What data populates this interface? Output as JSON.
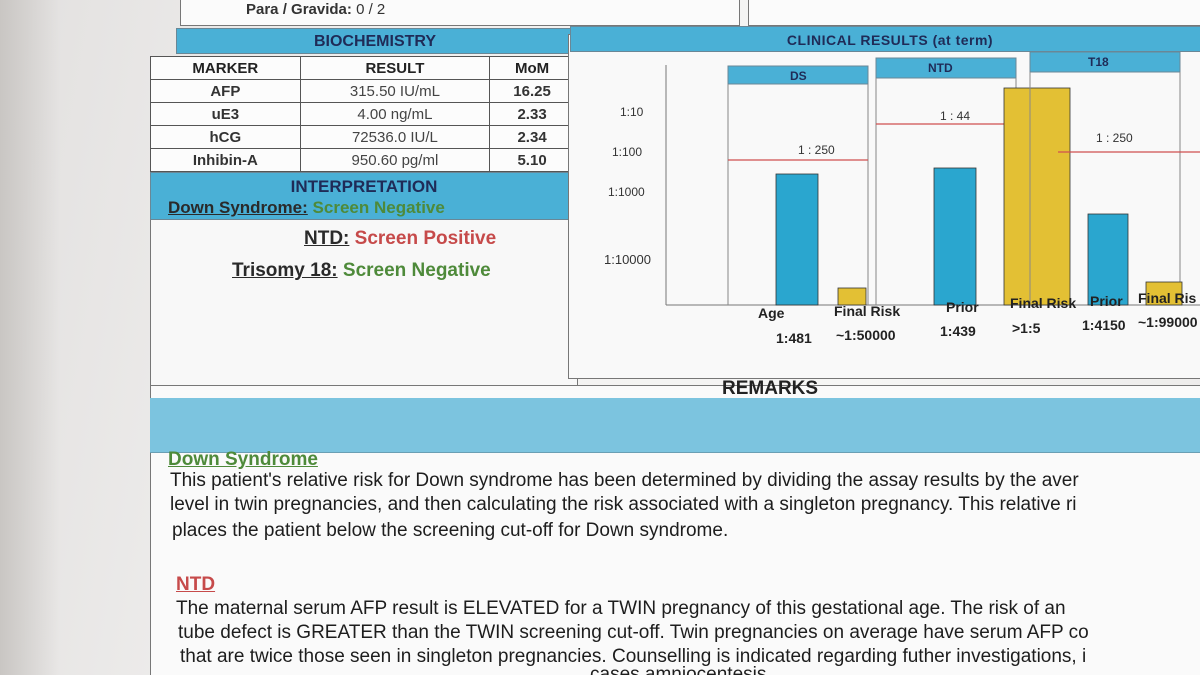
{
  "header": {
    "para_label": "Para / Gravida:",
    "para_value": "0 / 2"
  },
  "biochemistry": {
    "title": "BIOCHEMISTRY",
    "columns": [
      "MARKER",
      "RESULT",
      "MoM"
    ],
    "rows": [
      {
        "marker": "AFP",
        "result": "315.50 IU/mL",
        "mom": "16.25"
      },
      {
        "marker": "uE3",
        "result": "4.00 ng/mL",
        "mom": "2.33"
      },
      {
        "marker": "hCG",
        "result": "72536.0 IU/L",
        "mom": "2.34"
      },
      {
        "marker": "Inhibin-A",
        "result": "950.60 pg/ml",
        "mom": "5.10"
      }
    ]
  },
  "interpretation": {
    "title": "INTERPRETATION",
    "lines": [
      {
        "label": "Down Syndrome:",
        "result": "Screen Negative",
        "status": "negative"
      },
      {
        "label": "NTD:",
        "result": "Screen  Positive",
        "status": "positive"
      },
      {
        "label": "Trisomy 18:",
        "result": "Screen Negative",
        "status": "negative"
      }
    ]
  },
  "clinical_results": {
    "title": "CLINICAL RESULTS (at term)",
    "y_tick_labels": [
      "1:10",
      "1:100",
      "1:1000",
      "1:10000"
    ],
    "panels": [
      {
        "name": "DS",
        "cutoff_label": "1 : 250"
      },
      {
        "name": "NTD",
        "cutoff_label": "1 : 44"
      },
      {
        "name": "T18",
        "cutoff_label": "1 : 250"
      }
    ],
    "x_labels": [
      {
        "label": "Age",
        "value": "1:481"
      },
      {
        "label": "Final Risk",
        "value": "~1:50000"
      },
      {
        "label": "Prior",
        "value": "1:439"
      },
      {
        "label": "Final Risk",
        "value": ">1:5"
      },
      {
        "label": "Prior",
        "value": "1:4150"
      },
      {
        "label": "Final Ris",
        "value": "~1:99000"
      }
    ],
    "colors": {
      "prior": "#2aa6cf",
      "final": "#e3c034",
      "cutoff": "#d05050"
    }
  },
  "remarks": {
    "title": "REMARKS",
    "sections": [
      {
        "heading": "Down Syndrome",
        "heading_color": "#4e8a3a",
        "lines": [
          "This patient's relative risk for Down syndrome has been determined by dividing the assay results by the aver",
          "level in twin pregnancies, and then calculating the risk associated with a singleton pregnancy. This relative ri",
          "places the patient below the screening cut-off for Down syndrome."
        ]
      },
      {
        "heading": "NTD",
        "heading_color": "#c64a4a",
        "lines": [
          "The maternal serum AFP result is  ELEVATED for a TWIN pregnancy of this gestational age.  The risk of an",
          "tube defect is GREATER than the TWIN screening cut-off. Twin pregnancies on average have serum AFP co",
          "that are twice those seen in singleton pregnancies. Counselling  is indicated regarding futher investigations, i",
          "cases amniocentesis."
        ]
      }
    ]
  }
}
